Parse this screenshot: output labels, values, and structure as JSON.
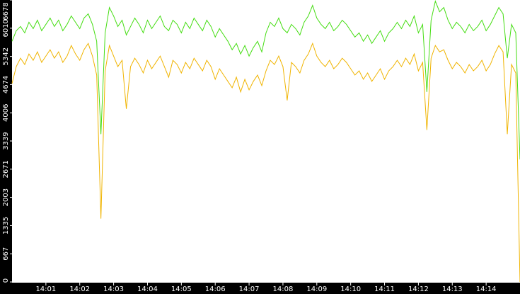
{
  "chart_data": {
    "type": "line",
    "x": [
      840,
      840.125,
      840.25,
      840.375,
      840.5,
      840.625,
      840.75,
      840.875,
      841,
      841.125,
      841.25,
      841.375,
      841.5,
      841.625,
      841.75,
      841.875,
      842,
      842.125,
      842.25,
      842.375,
      842.5,
      842.625,
      842.75,
      842.875,
      843,
      843.125,
      843.25,
      843.375,
      843.5,
      843.625,
      843.75,
      843.875,
      844,
      844.125,
      844.25,
      844.375,
      844.5,
      844.625,
      844.75,
      844.875,
      845,
      845.125,
      845.25,
      845.375,
      845.5,
      845.625,
      845.75,
      845.875,
      846,
      846.125,
      846.25,
      846.375,
      846.5,
      846.625,
      846.75,
      846.875,
      847,
      847.125,
      847.25,
      847.375,
      847.5,
      847.625,
      847.75,
      847.875,
      848,
      848.125,
      848.25,
      848.375,
      848.5,
      848.625,
      848.75,
      848.875,
      849,
      849.125,
      849.25,
      849.375,
      849.5,
      849.625,
      849.75,
      849.875,
      850,
      850.125,
      850.25,
      850.375,
      850.5,
      850.625,
      850.75,
      850.875,
      851,
      851.125,
      851.25,
      851.375,
      851.5,
      851.625,
      851.75,
      851.875,
      852,
      852.125,
      852.25,
      852.375,
      852.5,
      852.625,
      852.75,
      852.875,
      853,
      853.125,
      853.25,
      853.375,
      853.5,
      853.625,
      853.75,
      853.875,
      854,
      854.125,
      854.25,
      854.375,
      854.5,
      854.625,
      854.75,
      854.875,
      855
    ],
    "series": [
      {
        "color": "#44dd11",
        "values": [
          5700,
          5950,
          6050,
          5900,
          6150,
          6000,
          6200,
          5950,
          6100,
          6250,
          6050,
          6200,
          5950,
          6100,
          6300,
          6150,
          6000,
          6250,
          6350,
          6100,
          5700,
          3500,
          5900,
          6500,
          6300,
          6050,
          6200,
          5850,
          6050,
          6250,
          6100,
          5900,
          6200,
          6000,
          6150,
          6300,
          6050,
          5950,
          6200,
          6100,
          5900,
          6150,
          6000,
          6250,
          6100,
          5950,
          6200,
          6050,
          5800,
          6000,
          5850,
          5700,
          5500,
          5650,
          5400,
          5600,
          5350,
          5550,
          5700,
          5450,
          5900,
          6150,
          6050,
          6250,
          6000,
          5900,
          6100,
          6000,
          5850,
          6150,
          6300,
          6550,
          6250,
          6100,
          6000,
          6150,
          5950,
          6050,
          6200,
          6100,
          5950,
          5800,
          5900,
          5700,
          5850,
          5650,
          5800,
          5950,
          5700,
          5900,
          6000,
          6150,
          6000,
          6200,
          6050,
          6300,
          5900,
          6100,
          4500,
          6200,
          6650,
          6400,
          6500,
          6200,
          6000,
          6150,
          6050,
          5900,
          6100,
          5950,
          6050,
          6200,
          5950,
          6100,
          6300,
          6500,
          6350,
          5300,
          6100,
          5900,
          2900
        ]
      },
      {
        "color": "#f0b400",
        "values": [
          4700,
          5100,
          5300,
          5150,
          5400,
          5250,
          5450,
          5200,
          5350,
          5500,
          5300,
          5450,
          5200,
          5350,
          5600,
          5400,
          5250,
          5500,
          5650,
          5350,
          4900,
          1500,
          5000,
          5600,
          5350,
          5100,
          5250,
          4100,
          5100,
          5300,
          5150,
          4950,
          5250,
          5050,
          5200,
          5350,
          5100,
          4850,
          5250,
          5150,
          4950,
          5200,
          5050,
          5300,
          5150,
          5000,
          5250,
          5100,
          4800,
          5050,
          4900,
          4750,
          4600,
          4850,
          4500,
          4800,
          4550,
          4750,
          4900,
          4650,
          5000,
          5250,
          5150,
          5350,
          5100,
          4300,
          5200,
          5100,
          4950,
          5250,
          5400,
          5650,
          5350,
          5200,
          5100,
          5250,
          5050,
          5150,
          5300,
          5200,
          5050,
          4900,
          5000,
          4800,
          4950,
          4750,
          4900,
          5050,
          4800,
          5000,
          5100,
          5250,
          5100,
          5300,
          5150,
          5400,
          5000,
          5200,
          3600,
          5300,
          5600,
          5450,
          5500,
          5250,
          5050,
          5200,
          5100,
          4950,
          5150,
          5000,
          5100,
          5250,
          5000,
          5150,
          5400,
          5600,
          5450,
          3500,
          5150,
          4950,
          0
        ]
      }
    ],
    "xlim": [
      840,
      855
    ],
    "xticks": [
      {
        "value": 841,
        "label": "14:01"
      },
      {
        "value": 842,
        "label": "14:02"
      },
      {
        "value": 843,
        "label": "14:03"
      },
      {
        "value": 844,
        "label": "14:04"
      },
      {
        "value": 845,
        "label": "14:05"
      },
      {
        "value": 846,
        "label": "14:06"
      },
      {
        "value": 847,
        "label": "14:07"
      },
      {
        "value": 848,
        "label": "14:08"
      },
      {
        "value": 849,
        "label": "14:09"
      },
      {
        "value": 850,
        "label": "14:10"
      },
      {
        "value": 851,
        "label": "14:11"
      },
      {
        "value": 852,
        "label": "14:12"
      },
      {
        "value": 853,
        "label": "14:13"
      },
      {
        "value": 854,
        "label": "14:14"
      }
    ],
    "ylim": [
      0,
      6678
    ],
    "yticks": [
      0,
      667,
      1335,
      2003,
      2671,
      3339,
      4006,
      4674,
      5342,
      6010,
      6678
    ]
  }
}
